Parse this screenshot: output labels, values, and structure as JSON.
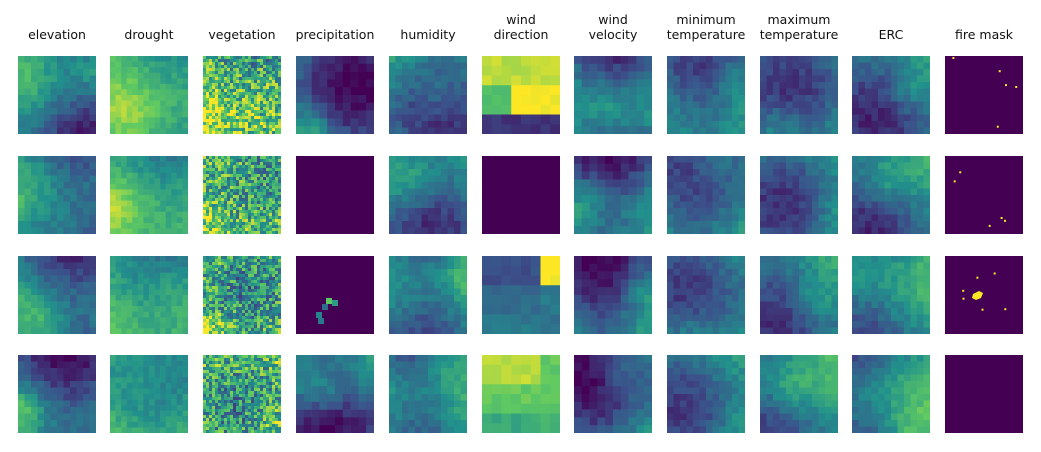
{
  "figure": {
    "columns": [
      {
        "label": "elevation",
        "icon": "elevation-map"
      },
      {
        "label": "drought",
        "icon": "drought-map"
      },
      {
        "label": "vegetation",
        "icon": "vegetation-map"
      },
      {
        "label": "precipitation",
        "icon": "precipitation-map"
      },
      {
        "label": "humidity",
        "icon": "humidity-map"
      },
      {
        "label": "wind\ndirection",
        "icon": "wind-direction-map"
      },
      {
        "label": "wind\nvelocity",
        "icon": "wind-velocity-map"
      },
      {
        "label": "minimum\ntemperature",
        "icon": "minimum-temperature-map"
      },
      {
        "label": "maximum\ntemperature",
        "icon": "maximum-temperature-map"
      },
      {
        "label": "ERC",
        "icon": "erc-map"
      },
      {
        "label": "fire mask",
        "icon": "fire-mask-map"
      }
    ],
    "rows": 4,
    "colormap": [
      "#440154",
      "#3b528b",
      "#21918c",
      "#5ec962",
      "#fde725"
    ]
  }
}
